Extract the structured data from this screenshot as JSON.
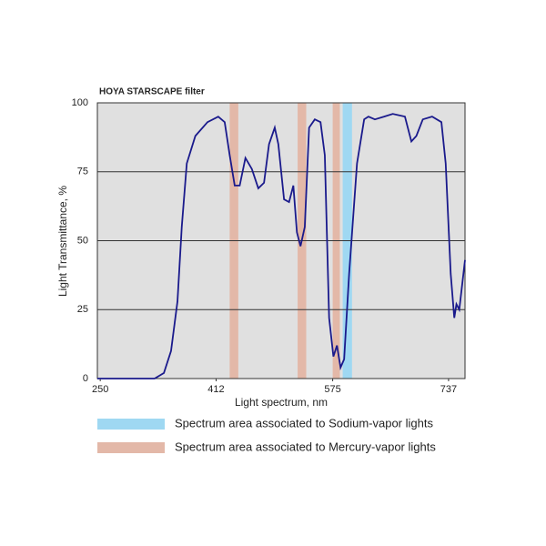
{
  "chart_data": {
    "type": "line",
    "title": "HOYA STARSCAPE filter",
    "x_label": "Light spectrum, nm",
    "y_label": "Light Transmittance, %",
    "xlim": [
      246,
      760
    ],
    "xticks": [
      250,
      412,
      575,
      737
    ],
    "ylim": [
      0,
      100
    ],
    "yticks": [
      0,
      25,
      50,
      75,
      100
    ],
    "grid": true,
    "bands": [
      {
        "name": "Spectrum area associated to Sodium-vapor lights",
        "color": "#9fd8f2",
        "ranges": [
          [
            589,
            602
          ]
        ]
      },
      {
        "name": "Spectrum area associated to Mercury-vapor lights",
        "color": "#e3b8a8",
        "ranges": [
          [
            431,
            443
          ],
          [
            526,
            538
          ],
          [
            575,
            585
          ]
        ]
      }
    ],
    "series": [
      {
        "color": "#1a1a8c",
        "x": [
          246,
          326,
          339,
          349,
          358,
          364,
          371,
          383,
          400,
          415,
          424,
          431,
          438,
          445,
          453,
          462,
          471,
          479,
          486,
          494,
          499,
          507,
          514,
          520,
          525,
          530,
          536,
          542,
          550,
          558,
          564,
          570,
          576,
          581,
          586,
          591,
          598,
          609,
          619,
          625,
          634,
          647,
          659,
          676,
          685,
          692,
          701,
          714,
          727,
          733,
          740,
          745,
          748,
          752,
          760
        ],
        "values": [
          0,
          0,
          2,
          10,
          28,
          55,
          78,
          88,
          93,
          95,
          93,
          81,
          70,
          70,
          80,
          76,
          69,
          71,
          85,
          91,
          85,
          65,
          64,
          70,
          53,
          48,
          55,
          91,
          94,
          93,
          81,
          22,
          8,
          12,
          4,
          7,
          38,
          78,
          94,
          95,
          94,
          95,
          96,
          95,
          86,
          88,
          94,
          95,
          93,
          78,
          38,
          22,
          27,
          25,
          43
        ]
      }
    ]
  }
}
